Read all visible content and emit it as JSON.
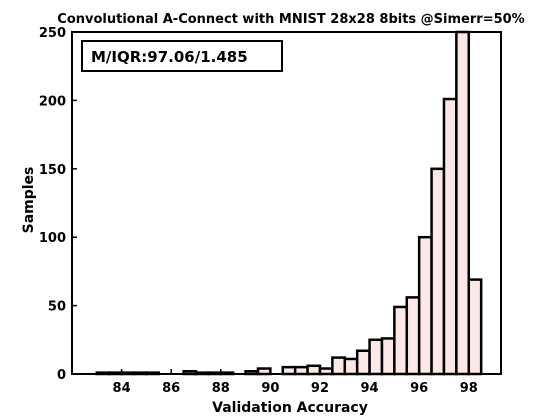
{
  "chart_data": {
    "type": "bar",
    "title": "Convolutional A-Connect with MNIST 28x28 8bits @Simerr=50%",
    "xlabel": "Validation Accuracy",
    "ylabel": "Samples",
    "xlim": [
      82,
      99.3
    ],
    "ylim": [
      0,
      250
    ],
    "x_ticks": [
      84,
      86,
      88,
      90,
      92,
      94,
      96,
      98
    ],
    "y_ticks": [
      0,
      50,
      100,
      150,
      200,
      250
    ],
    "bar_color": "#fde8e8",
    "edge_color": "#000000",
    "annotation": "M/IQR:97.06/1.485",
    "bins": [
      83.0,
      83.5,
      84.0,
      84.5,
      85.0,
      85.5,
      86.0,
      86.5,
      87.0,
      87.5,
      88.0,
      88.5,
      89.0,
      89.5,
      90.0,
      90.5,
      91.0,
      91.5,
      92.0,
      92.5,
      93.0,
      93.5,
      94.0,
      94.5,
      95.0,
      95.5,
      96.0,
      96.5,
      97.0,
      97.5,
      98.0
    ],
    "values": [
      1,
      1,
      1,
      1,
      1,
      0,
      0,
      2,
      1,
      1,
      1,
      0,
      2,
      4,
      0,
      5,
      5,
      6,
      4,
      12,
      11,
      17,
      25,
      26,
      49,
      56,
      100,
      150,
      201,
      250,
      69
    ]
  }
}
